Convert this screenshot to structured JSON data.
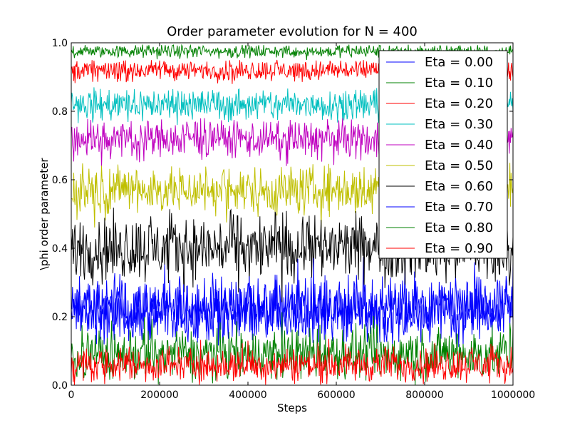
{
  "chart_data": {
    "type": "line",
    "title": "Order parameter evolution for N = 400",
    "xlabel": "Steps",
    "ylabel": "\\phi order parameter",
    "xlim": [
      0,
      1000000
    ],
    "ylim": [
      0.0,
      1.0
    ],
    "xticks": [
      0,
      200000,
      400000,
      600000,
      800000,
      1000000
    ],
    "xtick_labels": [
      "0",
      "200000",
      "400000",
      "600000",
      "800000",
      "1000000"
    ],
    "yticks": [
      0.0,
      0.2,
      0.4,
      0.6,
      0.8,
      1.0
    ],
    "ytick_labels": [
      "0.0",
      "0.2",
      "0.4",
      "0.6",
      "0.8",
      "1.0"
    ],
    "grid": false,
    "legend_position": "top-right",
    "series": [
      {
        "name": "Eta = 0.00",
        "color": "#0000ff",
        "mean": 0.22,
        "low": 0.12,
        "high": 0.38
      },
      {
        "name": "Eta = 0.10",
        "color": "#008000",
        "mean": 0.975,
        "low": 0.94,
        "high": 0.995
      },
      {
        "name": "Eta = 0.20",
        "color": "#ff0000",
        "mean": 0.92,
        "low": 0.86,
        "high": 0.95
      },
      {
        "name": "Eta = 0.30",
        "color": "#00bfbf",
        "mean": 0.82,
        "low": 0.73,
        "high": 0.87
      },
      {
        "name": "Eta = 0.40",
        "color": "#bf00bf",
        "mean": 0.72,
        "low": 0.61,
        "high": 0.78
      },
      {
        "name": "Eta = 0.50",
        "color": "#bfbf00",
        "mean": 0.57,
        "low": 0.44,
        "high": 0.65
      },
      {
        "name": "Eta = 0.60",
        "color": "#000000",
        "mean": 0.4,
        "low": 0.24,
        "high": 0.52
      },
      {
        "name": "Eta = 0.70",
        "color": "#0000ff",
        "mean": 0.22,
        "low": 0.11,
        "high": 0.38
      },
      {
        "name": "Eta = 0.80",
        "color": "#008000",
        "mean": 0.09,
        "low": 0.0,
        "high": 0.22
      },
      {
        "name": "Eta = 0.90",
        "color": "#ff0000",
        "mean": 0.06,
        "low": 0.0,
        "high": 0.15
      }
    ]
  }
}
